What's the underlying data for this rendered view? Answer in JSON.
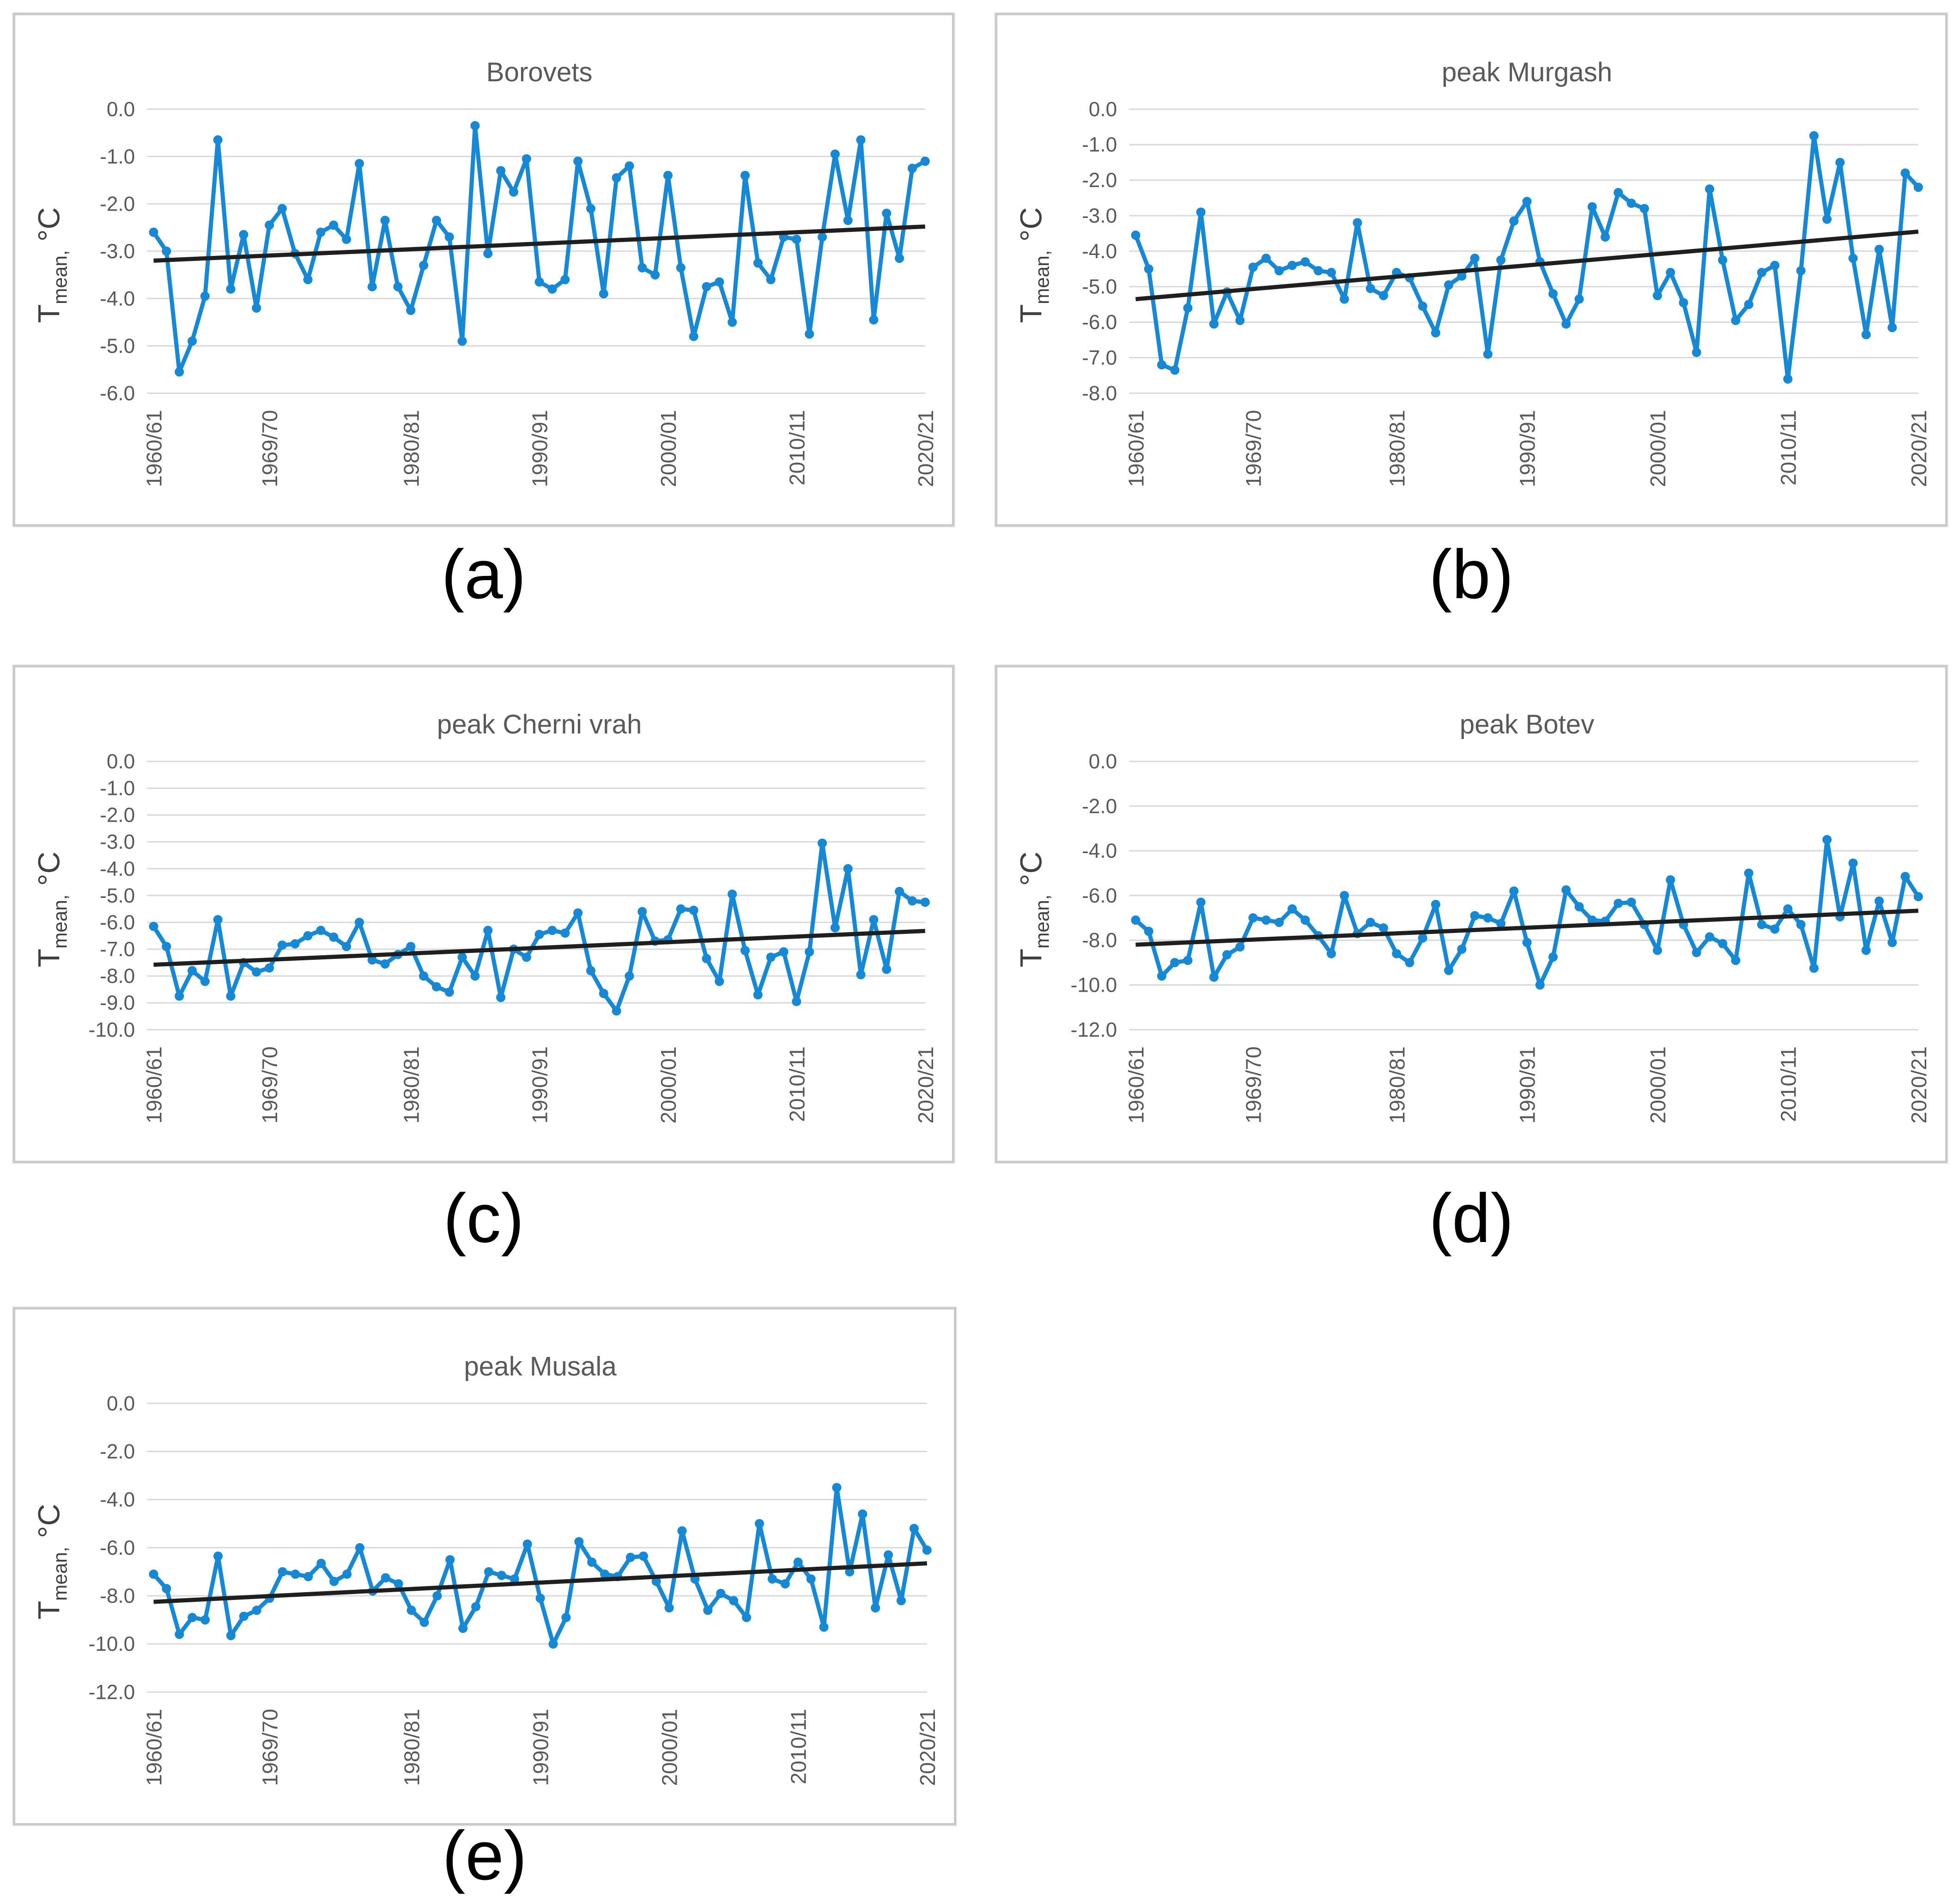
{
  "figure": {
    "description": "Five line charts of winter mean temperature series with linear trend lines",
    "captions": [
      "(a)",
      "(b)",
      "(c)",
      "(d)",
      "(e)"
    ]
  },
  "colors": {
    "series_blue": "#1789D4",
    "trend_black": "#1f1f1f",
    "grid": "#D9D9D9",
    "tick_text": "#595959",
    "title_text": "#595959",
    "axis_label_text": "#404040",
    "panel_border": "#c9c9c9",
    "caption_text": "#000000",
    "background": "#ffffff"
  },
  "chart_data": [
    {
      "panel": "a",
      "type": "line",
      "title": "Borovets",
      "ylabel": "Tmean, °C",
      "ylabel_parts": {
        "base": "T",
        "sub": "mean,",
        "unit": " °C"
      },
      "x_tick_labels": [
        "1960/61",
        "1969/70",
        "1980/81",
        "1990/91",
        "2000/01",
        "2010/11",
        "2020/21"
      ],
      "x_tick_indices": [
        0,
        9,
        20,
        30,
        40,
        50,
        60
      ],
      "n_points": 61,
      "ylim": [
        -6,
        0
      ],
      "ytick_step": 1,
      "ytick_labels": [
        "0.0",
        "-1.0",
        "-2.0",
        "-3.0",
        "-4.0",
        "-5.0",
        "-6.0"
      ],
      "grid": true,
      "legend": "none",
      "series": [
        {
          "name": "winter mean temperature",
          "values": [
            -2.6,
            -3.0,
            -5.55,
            -4.9,
            -3.95,
            -0.65,
            -3.8,
            -2.65,
            -4.2,
            -2.45,
            -2.1,
            -3.05,
            -3.6,
            -2.6,
            -2.45,
            -2.75,
            -1.15,
            -3.75,
            -2.35,
            -3.75,
            -4.25,
            -3.3,
            -2.35,
            -2.7,
            -4.9,
            -0.35,
            -3.05,
            -1.3,
            -1.75,
            -1.05,
            -3.65,
            -3.8,
            -3.6,
            -1.1,
            -2.1,
            -3.9,
            -1.45,
            -1.2,
            -3.35,
            -3.5,
            -1.4,
            -3.35,
            -4.8,
            -3.75,
            -3.65,
            -4.5,
            -1.4,
            -3.25,
            -3.6,
            -2.7,
            -2.75,
            -4.75,
            -2.7,
            -0.95,
            -2.35,
            -0.65,
            -4.45,
            -2.2,
            -3.15,
            -1.25,
            -1.1
          ]
        }
      ],
      "trend": {
        "name": "linear trend",
        "start": -3.2,
        "end": -2.48
      }
    },
    {
      "panel": "b",
      "type": "line",
      "title": "peak Murgash",
      "ylabel": "Tmean, °C",
      "ylabel_parts": {
        "base": "T",
        "sub": "mean,",
        "unit": " °C"
      },
      "x_tick_labels": [
        "1960/61",
        "1969/70",
        "1980/81",
        "1990/91",
        "2000/01",
        "2010/11",
        "2020/21"
      ],
      "x_tick_indices": [
        0,
        9,
        20,
        30,
        40,
        50,
        60
      ],
      "n_points": 61,
      "ylim": [
        -8,
        0
      ],
      "ytick_step": 1,
      "ytick_labels": [
        "0.0",
        "-1.0",
        "-2.0",
        "-3.0",
        "-4.0",
        "-5.0",
        "-6.0",
        "-7.0",
        "-8.0"
      ],
      "grid": true,
      "legend": "none",
      "series": [
        {
          "name": "winter mean temperature",
          "values": [
            -3.55,
            -4.5,
            -7.2,
            -7.35,
            -5.6,
            -2.9,
            -6.05,
            -5.15,
            -5.95,
            -4.45,
            -4.2,
            -4.55,
            -4.4,
            -4.3,
            -4.55,
            -4.6,
            -5.35,
            -3.2,
            -5.05,
            -5.25,
            -4.6,
            -4.75,
            -5.55,
            -6.3,
            -4.95,
            -4.7,
            -4.2,
            -6.9,
            -4.25,
            -3.15,
            -2.6,
            -4.3,
            -5.2,
            -6.05,
            -5.35,
            -2.75,
            -3.6,
            -2.35,
            -2.65,
            -2.8,
            -5.25,
            -4.6,
            -5.45,
            -6.85,
            -2.25,
            -4.25,
            -5.95,
            -5.5,
            -4.6,
            -4.4,
            -7.6,
            -4.55,
            -0.75,
            -3.1,
            -1.5,
            -4.2,
            -6.35,
            -3.95,
            -6.15,
            -1.8,
            -2.2
          ]
        }
      ],
      "trend": {
        "name": "linear trend",
        "start": -5.35,
        "end": -3.45
      }
    },
    {
      "panel": "c",
      "type": "line",
      "title": "peak Cherni vrah",
      "ylabel": "Tmean, °C",
      "ylabel_parts": {
        "base": "T",
        "sub": "mean,",
        "unit": " °C"
      },
      "x_tick_labels": [
        "1960/61",
        "1969/70",
        "1980/81",
        "1990/91",
        "2000/01",
        "2010/11",
        "2020/21"
      ],
      "x_tick_indices": [
        0,
        9,
        20,
        30,
        40,
        50,
        60
      ],
      "n_points": 61,
      "ylim": [
        -10,
        0
      ],
      "ytick_step": 1,
      "ytick_labels": [
        "0.0",
        "-1.0",
        "-2.0",
        "-3.0",
        "-4.0",
        "-5.0",
        "-6.0",
        "-7.0",
        "-8.0",
        "-9.0",
        "-10.0"
      ],
      "grid": true,
      "legend": "none",
      "series": [
        {
          "name": "winter mean temperature",
          "values": [
            -6.15,
            -6.9,
            -8.75,
            -7.8,
            -8.2,
            -5.9,
            -8.75,
            -7.5,
            -7.85,
            -7.7,
            -6.85,
            -6.8,
            -6.5,
            -6.3,
            -6.55,
            -6.9,
            -6.0,
            -7.4,
            -7.55,
            -7.2,
            -6.9,
            -8.0,
            -8.4,
            -8.6,
            -7.3,
            -8.0,
            -6.3,
            -8.8,
            -7.0,
            -7.3,
            -6.45,
            -6.3,
            -6.4,
            -5.65,
            -7.8,
            -8.65,
            -9.3,
            -8.0,
            -5.6,
            -6.7,
            -6.65,
            -5.5,
            -5.55,
            -7.35,
            -8.2,
            -4.95,
            -7.05,
            -8.7,
            -7.3,
            -7.1,
            -8.95,
            -7.1,
            -3.05,
            -6.2,
            -4.0,
            -7.95,
            -5.9,
            -7.75,
            -4.85,
            -5.2,
            -5.25
          ]
        }
      ],
      "trend": {
        "name": "linear trend",
        "start": -7.58,
        "end": -6.32
      }
    },
    {
      "panel": "d",
      "type": "line",
      "title": "peak Botev",
      "ylabel": "Tmean, °C",
      "ylabel_parts": {
        "base": "T",
        "sub": "mean,",
        "unit": " °C"
      },
      "x_tick_labels": [
        "1960/61",
        "1969/70",
        "1980/81",
        "1990/91",
        "2000/01",
        "2010/11",
        "2020/21"
      ],
      "x_tick_indices": [
        0,
        9,
        20,
        30,
        40,
        50,
        60
      ],
      "n_points": 61,
      "ylim": [
        -12,
        0
      ],
      "ytick_step": 2,
      "ytick_labels": [
        "0.0",
        "-2.0",
        "-4.0",
        "-6.0",
        "-8.0",
        "-10.0",
        "-12.0"
      ],
      "grid": true,
      "legend": "none",
      "series": [
        {
          "name": "winter mean temperature",
          "values": [
            -7.1,
            -7.6,
            -9.6,
            -9.0,
            -8.9,
            -6.3,
            -9.65,
            -8.65,
            -8.3,
            -7.0,
            -7.1,
            -7.2,
            -6.6,
            -7.1,
            -7.8,
            -8.6,
            -6.0,
            -7.7,
            -7.2,
            -7.45,
            -8.6,
            -9.0,
            -7.9,
            -6.4,
            -9.35,
            -8.4,
            -6.9,
            -7.0,
            -7.25,
            -5.8,
            -8.1,
            -10.0,
            -8.75,
            -5.75,
            -6.5,
            -7.1,
            -7.15,
            -6.35,
            -6.3,
            -7.3,
            -8.45,
            -5.3,
            -7.3,
            -8.55,
            -7.85,
            -8.15,
            -8.9,
            -5.0,
            -7.3,
            -7.5,
            -6.6,
            -7.3,
            -9.25,
            -3.5,
            -6.95,
            -4.55,
            -8.45,
            -6.25,
            -8.1,
            -5.15,
            -6.05
          ]
        }
      ],
      "trend": {
        "name": "linear trend",
        "start": -8.2,
        "end": -6.68
      }
    },
    {
      "panel": "e",
      "type": "line",
      "title": "peak Musala",
      "ylabel": "Tmean, °C",
      "ylabel_parts": {
        "base": "T",
        "sub": "mean,",
        "unit": " °C"
      },
      "x_tick_labels": [
        "1960/61",
        "1969/70",
        "1980/81",
        "1990/91",
        "2000/01",
        "2010/11",
        "2020/21"
      ],
      "x_tick_indices": [
        0,
        9,
        20,
        30,
        40,
        50,
        60
      ],
      "n_points": 61,
      "ylim": [
        -12,
        0
      ],
      "ytick_step": 2,
      "ytick_labels": [
        "0.0",
        "-2.0",
        "-4.0",
        "-6.0",
        "-8.0",
        "-10.0",
        "-12.0"
      ],
      "grid": true,
      "legend": "none",
      "series": [
        {
          "name": "winter mean temperature",
          "values": [
            -7.1,
            -7.7,
            -9.6,
            -8.9,
            -9.0,
            -6.35,
            -9.65,
            -8.85,
            -8.6,
            -8.1,
            -7.0,
            -7.1,
            -7.2,
            -6.65,
            -7.4,
            -7.1,
            -6.0,
            -7.8,
            -7.25,
            -7.5,
            -8.6,
            -9.1,
            -8.0,
            -6.5,
            -9.35,
            -8.45,
            -7.0,
            -7.15,
            -7.3,
            -5.85,
            -8.1,
            -10.0,
            -8.9,
            -5.75,
            -6.6,
            -7.1,
            -7.2,
            -6.4,
            -6.35,
            -7.4,
            -8.5,
            -5.3,
            -7.3,
            -8.6,
            -7.9,
            -8.2,
            -8.9,
            -5.0,
            -7.3,
            -7.5,
            -6.6,
            -7.3,
            -9.3,
            -3.5,
            -7.0,
            -4.6,
            -8.5,
            -6.3,
            -8.2,
            -5.2,
            -6.1
          ]
        }
      ],
      "trend": {
        "name": "linear trend",
        "start": -8.25,
        "end": -6.65
      }
    }
  ]
}
